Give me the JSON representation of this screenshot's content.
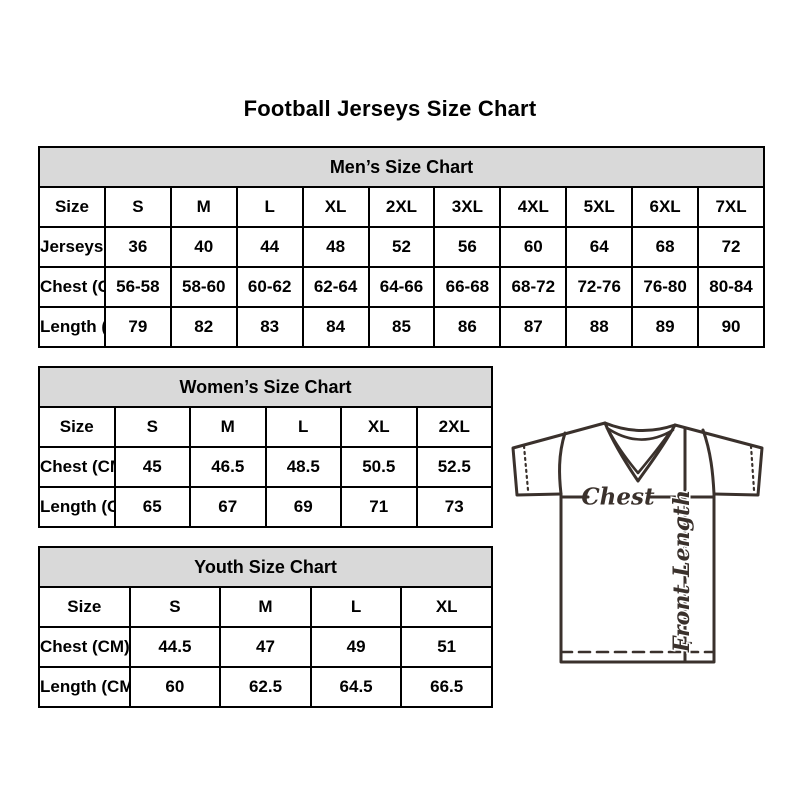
{
  "title": "Football Jerseys Size Chart",
  "tables": {
    "men": {
      "header": "Men’s Size Chart",
      "rows": [
        [
          "Size",
          "S",
          "M",
          "L",
          "XL",
          "2XL",
          "3XL",
          "4XL",
          "5XL",
          "6XL",
          "7XL"
        ],
        [
          "Jerseys Size",
          "36",
          "40",
          "44",
          "48",
          "52",
          "56",
          "60",
          "64",
          "68",
          "72"
        ],
        [
          "Chest (CM)",
          "56-58",
          "58-60",
          "60-62",
          "62-64",
          "64-66",
          "66-68",
          "68-72",
          "72-76",
          "76-80",
          "80-84"
        ],
        [
          "Length (CM)",
          "79",
          "82",
          "83",
          "84",
          "85",
          "86",
          "87",
          "88",
          "89",
          "90"
        ]
      ]
    },
    "women": {
      "header": "Women’s Size Chart",
      "rows": [
        [
          "Size",
          "S",
          "M",
          "L",
          "XL",
          "2XL"
        ],
        [
          "Chest (CM)",
          "45",
          "46.5",
          "48.5",
          "50.5",
          "52.5"
        ],
        [
          "Length (CM)",
          "65",
          "67",
          "69",
          "71",
          "73"
        ]
      ]
    },
    "youth": {
      "header": "Youth Size Chart",
      "rows": [
        [
          "Size",
          "S",
          "M",
          "L",
          "XL"
        ],
        [
          "Chest (CM)",
          "44.5",
          "47",
          "49",
          "51"
        ],
        [
          "Length (CM)",
          "60",
          "62.5",
          "64.5",
          "66.5"
        ]
      ]
    }
  },
  "diagram": {
    "chest_label": "Chest",
    "front_length_label": "Front Length"
  },
  "colors": {
    "header_bg": "#d9d9d9",
    "border": "#000000",
    "text": "#000000",
    "diagram_line": "#3a312c"
  }
}
